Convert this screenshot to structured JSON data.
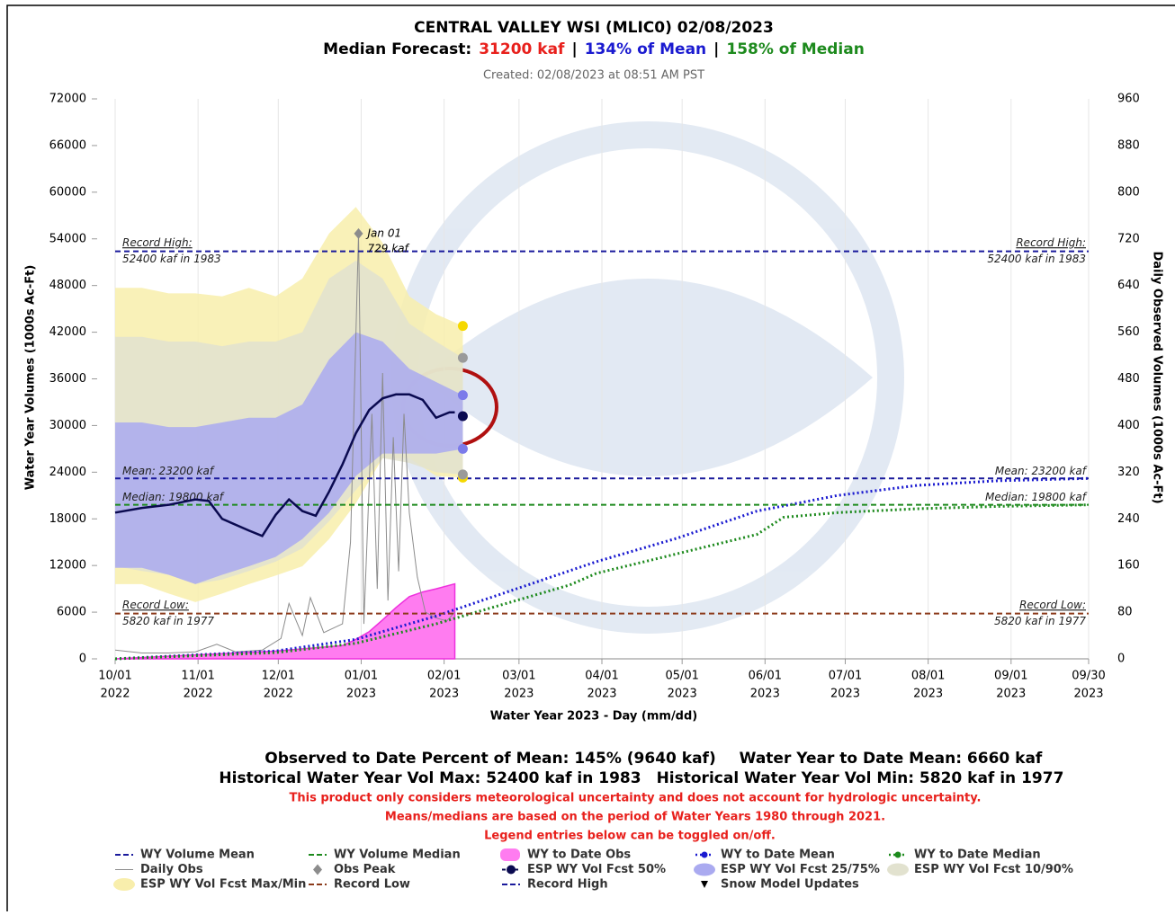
{
  "chart_data": {
    "type": "water-supply",
    "title": "CENTRAL VALLEY WSI (MLIC0)  02/08/2023",
    "subtitle_parts": [
      "Median Forecast:",
      "31200 kaf",
      "|",
      "134% of Mean",
      "|",
      "158% of Median"
    ],
    "subtitle_colors": [
      "#000000",
      "#e8201c",
      "#000000",
      "#1a1ad0",
      "#000000",
      "#1d8a1d"
    ],
    "created": "Created: 02/08/2023 at 08:51 AM PST",
    "xlabel": "Water Year 2023 - Day (mm/dd)",
    "ylabel": "Water Year Volumes (1000s Ac-Ft)",
    "y2label": "Daily Observed Volumes (1000s Ac-Ft)",
    "xlim": [
      0,
      364
    ],
    "xticks": [
      {
        "value": 0,
        "label": "10/01"
      },
      {
        "value": 31,
        "label": "11/01"
      },
      {
        "value": 61,
        "label": "12/01"
      },
      {
        "value": 92,
        "label": "01/01"
      },
      {
        "value": 123,
        "label": "02/01"
      },
      {
        "value": 151,
        "label": "03/01"
      },
      {
        "value": 182,
        "label": "04/01"
      },
      {
        "value": 212,
        "label": "05/01"
      },
      {
        "value": 243,
        "label": "06/01"
      },
      {
        "value": 273,
        "label": "07/01"
      },
      {
        "value": 304,
        "label": "08/01"
      },
      {
        "value": 335,
        "label": "09/01"
      },
      {
        "value": 364,
        "label": "09/30"
      }
    ],
    "xtick_years": [
      "2022",
      "2022",
      "2022",
      "2023",
      "2023",
      "2023",
      "2023",
      "2023",
      "2023",
      "2023",
      "2023",
      "2023",
      "2023"
    ],
    "ylim": [
      0,
      72000
    ],
    "yticks": [
      0,
      6000,
      12000,
      18000,
      24000,
      30000,
      36000,
      42000,
      48000,
      54000,
      60000,
      66000,
      72000
    ],
    "y2lim": [
      0,
      960
    ],
    "y2ticks": [
      0,
      80,
      160,
      240,
      320,
      400,
      480,
      560,
      640,
      720,
      800,
      880,
      960
    ],
    "grid": true,
    "series": [
      {
        "name": "WY Volume Mean",
        "style": "hline",
        "color": "#1a1a9c",
        "value": 23200
      },
      {
        "name": "WY Volume Median",
        "style": "hline",
        "color": "#1d8a1d",
        "value": 19800
      },
      {
        "name": "WY to Date Obs",
        "style": "area",
        "color": "#ff7cf0",
        "x": [
          0,
          30,
          60,
          85,
          90,
          95,
          100,
          105,
          110,
          115,
          120,
          127
        ],
        "values": [
          0,
          500,
          1000,
          1700,
          2500,
          3500,
          5000,
          6600,
          8000,
          8600,
          9000,
          9640
        ]
      },
      {
        "name": "WY to Date Mean",
        "style": "dot",
        "color": "#1a1ad0",
        "x": [
          0,
          60,
          90,
          120,
          150,
          180,
          210,
          240,
          270,
          300,
          330,
          364
        ],
        "values": [
          0,
          1000,
          2500,
          5500,
          9000,
          12500,
          15500,
          19000,
          21000,
          22300,
          22900,
          23200
        ]
      },
      {
        "name": "WY to Date Median",
        "style": "dot",
        "color": "#1d8a1d",
        "x": [
          0,
          60,
          90,
          120,
          150,
          170,
          180,
          210,
          240,
          250,
          270,
          300,
          330,
          364
        ],
        "values": [
          0,
          800,
          2000,
          4500,
          7500,
          9500,
          11000,
          13500,
          16000,
          18200,
          18800,
          19300,
          19600,
          19800
        ]
      },
      {
        "name": "Daily Obs",
        "style": "line",
        "color": "#8c8c8c",
        "axis": "y2",
        "x": [
          0,
          10,
          20,
          30,
          38,
          45,
          55,
          62,
          65,
          70,
          73,
          78,
          85,
          88,
          91,
          93,
          96,
          98,
          100,
          102,
          104,
          106,
          108,
          110,
          113,
          116,
          120,
          124,
          127
        ],
        "values": [
          15,
          10,
          10,
          12,
          25,
          12,
          15,
          35,
          95,
          40,
          105,
          45,
          60,
          200,
          729,
          60,
          420,
          120,
          490,
          100,
          380,
          150,
          420,
          250,
          140,
          80,
          70,
          65,
          80
        ]
      },
      {
        "name": "Obs Peak",
        "style": "diamond",
        "color": "#8c8c8c",
        "axis": "y2",
        "x": [
          91
        ],
        "values": [
          729
        ],
        "annotation": [
          "Jan 01",
          "729 kaf"
        ]
      },
      {
        "name": "ESP WY Vol Fcst 50%",
        "style": "circle",
        "color": "#0a0a50",
        "x": [
          130
        ],
        "values": [
          31200
        ]
      },
      {
        "name": "ESP WY Vol Fcst 25/75%",
        "style": "band",
        "color": "#aaaaf0",
        "marker": "#7b7bea",
        "x": [
          0,
          10,
          20,
          30,
          40,
          50,
          60,
          70,
          80,
          90,
          100,
          110,
          120,
          130
        ],
        "upper": [
          30400,
          30400,
          29800,
          29800,
          30400,
          31000,
          31000,
          32700,
          38500,
          42000,
          40800,
          37300,
          35600,
          33900
        ],
        "lower": [
          11700,
          11700,
          10800,
          9600,
          10800,
          11900,
          13100,
          15400,
          18800,
          23500,
          26400,
          26400,
          26400,
          27000
        ]
      },
      {
        "name": "ESP WY Vol Fcst 10/90%",
        "style": "band",
        "color": "#e2e2cf",
        "marker": "#9a9a9a",
        "x": [
          0,
          10,
          20,
          30,
          40,
          50,
          60,
          70,
          80,
          90,
          100,
          110,
          120,
          130
        ],
        "upper": [
          41400,
          41400,
          40800,
          40800,
          40200,
          40800,
          40800,
          42000,
          48900,
          51200,
          48900,
          43100,
          40800,
          38700
        ],
        "lower": [
          11900,
          11300,
          10800,
          9600,
          10200,
          11300,
          12500,
          14200,
          17700,
          21700,
          25800,
          25200,
          24000,
          23700
        ]
      },
      {
        "name": "ESP WY Vol Fcst Max/Min",
        "style": "band",
        "color": "#f8eeac",
        "marker": "#f5d800",
        "x": [
          0,
          10,
          20,
          30,
          40,
          50,
          60,
          70,
          80,
          90,
          100,
          110,
          120,
          130
        ],
        "upper": [
          47700,
          47700,
          47000,
          47000,
          46600,
          47700,
          46600,
          48900,
          54700,
          58100,
          53500,
          46600,
          44300,
          42800
        ],
        "lower": [
          9600,
          9600,
          8400,
          7300,
          8400,
          9600,
          10700,
          11900,
          15400,
          20000,
          25800,
          25800,
          23500,
          23300
        ]
      },
      {
        "name": "Record Low",
        "style": "hline",
        "color": "#8b3a1a",
        "value": 5820
      },
      {
        "name": "Record High",
        "style": "hline",
        "color": "#1a1a9c",
        "value": 52400
      },
      {
        "name": "Snow Model Updates",
        "style": "triangle",
        "color": "#000000",
        "x": [],
        "values": []
      }
    ],
    "observed": {
      "name": "WY Observed Volume",
      "color": "#0a0a50",
      "x": [
        0,
        10,
        20,
        30,
        35,
        40,
        50,
        55,
        60,
        65,
        70,
        75,
        80,
        85,
        90,
        95,
        100,
        105,
        110,
        115,
        120,
        125,
        127
      ],
      "values": [
        18800,
        19400,
        19800,
        20500,
        20300,
        18000,
        16500,
        15800,
        18500,
        20500,
        19000,
        18400,
        21500,
        25000,
        29000,
        32000,
        33500,
        34000,
        34000,
        33300,
        31000,
        31700,
        31700
      ]
    },
    "line_labels": [
      {
        "lines": [
          "Record High:",
          "52400 kaf in 1983"
        ],
        "y": 52400
      },
      {
        "lines": [
          "Mean: 23200 kaf"
        ],
        "y": 23200
      },
      {
        "lines": [
          "Median: 19800 kaf"
        ],
        "y": 19800
      },
      {
        "lines": [
          "Record Low:",
          "5820 kaf in 1977"
        ],
        "y": 5820
      }
    ],
    "legend_note": "Legend entries below can be toggled on/off.",
    "footer": {
      "stats": [
        [
          "Observed to Date Percent of Mean: 145% (9640 kaf)",
          "Water Year to Date Mean: 6660 kaf"
        ],
        [
          "Historical Water Year Vol Max: 52400 kaf in 1983",
          "Historical Water Year Vol Min: 5820 kaf in 1977"
        ]
      ],
      "notes": [
        "This product only considers meteorological uncertainty and does not account for hydrologic uncertainty.",
        "Means/medians are based on the period of Water Years 1980 through 2021."
      ]
    }
  }
}
